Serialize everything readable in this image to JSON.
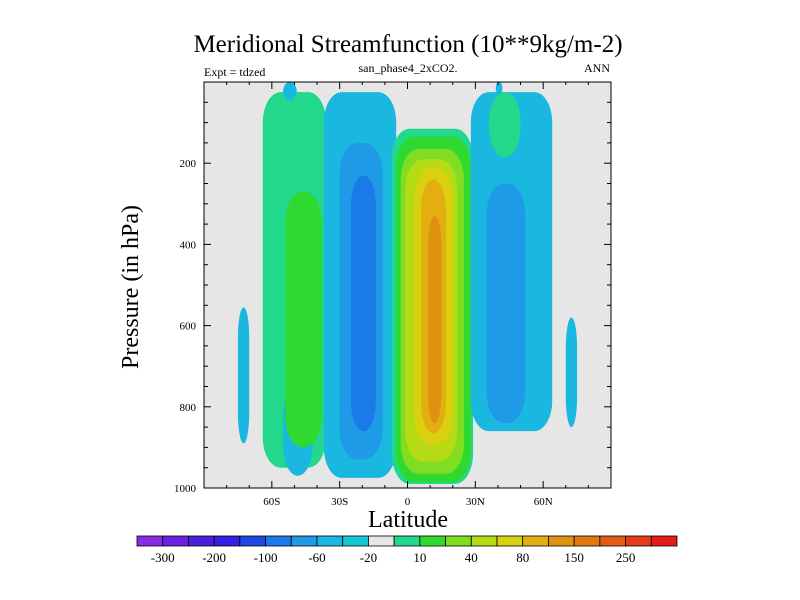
{
  "chart_data": {
    "type": "heatmap",
    "title": "Meridional Streamfunction (10**9kg/m-2)",
    "left_annotation": "Expt = tdzed",
    "center_annotation": "san_phase4_2xCO2.",
    "right_annotation": "ANN",
    "xlabel": "Latitude",
    "ylabel": "Pressure (in hPa)",
    "xlim": [
      -90,
      90
    ],
    "ylim": [
      1000,
      0
    ],
    "x_ticks": [
      {
        "value": -60,
        "label": "60S"
      },
      {
        "value": -30,
        "label": "30S"
      },
      {
        "value": 0,
        "label": "0"
      },
      {
        "value": 30,
        "label": "30N"
      },
      {
        "value": 60,
        "label": "60N"
      }
    ],
    "y_ticks": [
      {
        "value": 200,
        "label": "200"
      },
      {
        "value": 400,
        "label": "400"
      },
      {
        "value": 600,
        "label": "600"
      },
      {
        "value": 800,
        "label": "800"
      },
      {
        "value": 1000,
        "label": "1000"
      }
    ],
    "background_color": "#e6e6e6",
    "regions": [
      {
        "level": "10 to 20",
        "color": "#22d88a",
        "lat": [
          -64,
          -36
        ],
        "p": [
          25,
          950
        ]
      },
      {
        "level": "-20 to -10",
        "color": "#1ab8e0",
        "lat": [
          -55,
          -42
        ],
        "p": [
          750,
          970
        ]
      },
      {
        "level": "20 to 30",
        "color": "#2fd92f",
        "lat": [
          -54,
          -38
        ],
        "p": [
          270,
          900
        ]
      },
      {
        "level": "-20 to -10",
        "color": "#1ab8e0",
        "lat": [
          -37,
          -5
        ],
        "p": [
          25,
          975
        ]
      },
      {
        "level": "-40 to -20",
        "color": "#1e9ae6",
        "lat": [
          -30,
          -11
        ],
        "p": [
          150,
          930
        ]
      },
      {
        "level": "-60 to -40",
        "color": "#1a7ae8",
        "lat": [
          -25,
          -14
        ],
        "p": [
          230,
          860
        ]
      },
      {
        "level": "10 to 20",
        "color": "#22d88a",
        "lat": [
          -7,
          29
        ],
        "p": [
          115,
          990
        ]
      },
      {
        "level": "20 to 30",
        "color": "#2fd92f",
        "lat": [
          -5,
          28
        ],
        "p": [
          135,
          985
        ]
      },
      {
        "level": "30 to 40",
        "color": "#7fdd22",
        "lat": [
          -3,
          25
        ],
        "p": [
          165,
          965
        ]
      },
      {
        "level": "40 to 60",
        "color": "#b5db14",
        "lat": [
          -1,
          22
        ],
        "p": [
          190,
          935
        ]
      },
      {
        "level": "60 to 80",
        "color": "#d9d110",
        "lat": [
          3,
          20
        ],
        "p": [
          210,
          895
        ]
      },
      {
        "level": "80 to 100",
        "color": "#e3ae0f",
        "lat": [
          6,
          17
        ],
        "p": [
          240,
          865
        ]
      },
      {
        "level": "100 to 150",
        "color": "#de9211",
        "lat": [
          9,
          15
        ],
        "p": [
          330,
          840
        ]
      },
      {
        "level": "-20 to -10",
        "color": "#1ab8e0",
        "lat": [
          28,
          64
        ],
        "p": [
          25,
          860
        ]
      },
      {
        "level": "-40 to -20",
        "color": "#1e9ae6",
        "lat": [
          35,
          52
        ],
        "p": [
          250,
          840
        ]
      },
      {
        "level": "10 to 20",
        "color": "#22d88a",
        "lat": [
          36,
          50
        ],
        "p": [
          25,
          185
        ]
      },
      {
        "level": "-20 to -10",
        "color": "#1ab8e0",
        "lat": [
          -75,
          -70
        ],
        "p": [
          555,
          890
        ]
      },
      {
        "level": "-20 to -10",
        "color": "#1ab8e0",
        "lat": [
          70,
          75
        ],
        "p": [
          580,
          850
        ]
      },
      {
        "level": "-20 to -10",
        "color": "#1ab8e0",
        "lat": [
          -55,
          -49
        ],
        "p": [
          0,
          45
        ]
      },
      {
        "level": "-20 to -10",
        "color": "#1ab8e0",
        "lat": [
          39,
          42
        ],
        "p": [
          0,
          30
        ]
      }
    ],
    "colorbar": {
      "labels": [
        "-300",
        "-200",
        "-100",
        "-60",
        "-20",
        "10",
        "40",
        "80",
        "150",
        "250"
      ],
      "colors": [
        "#8a2be2",
        "#6a22e0",
        "#4a20df",
        "#3320e0",
        "#1e48e4",
        "#1a7ae8",
        "#1e9ae6",
        "#1ab8e0",
        "#14c6d4",
        "#e6e6e6",
        "#22d88a",
        "#2fd92f",
        "#7fdd22",
        "#b5db14",
        "#d9d110",
        "#e3ae0f",
        "#de9211",
        "#e47812",
        "#e45c16",
        "#e43c18",
        "#e41d1a"
      ]
    }
  }
}
